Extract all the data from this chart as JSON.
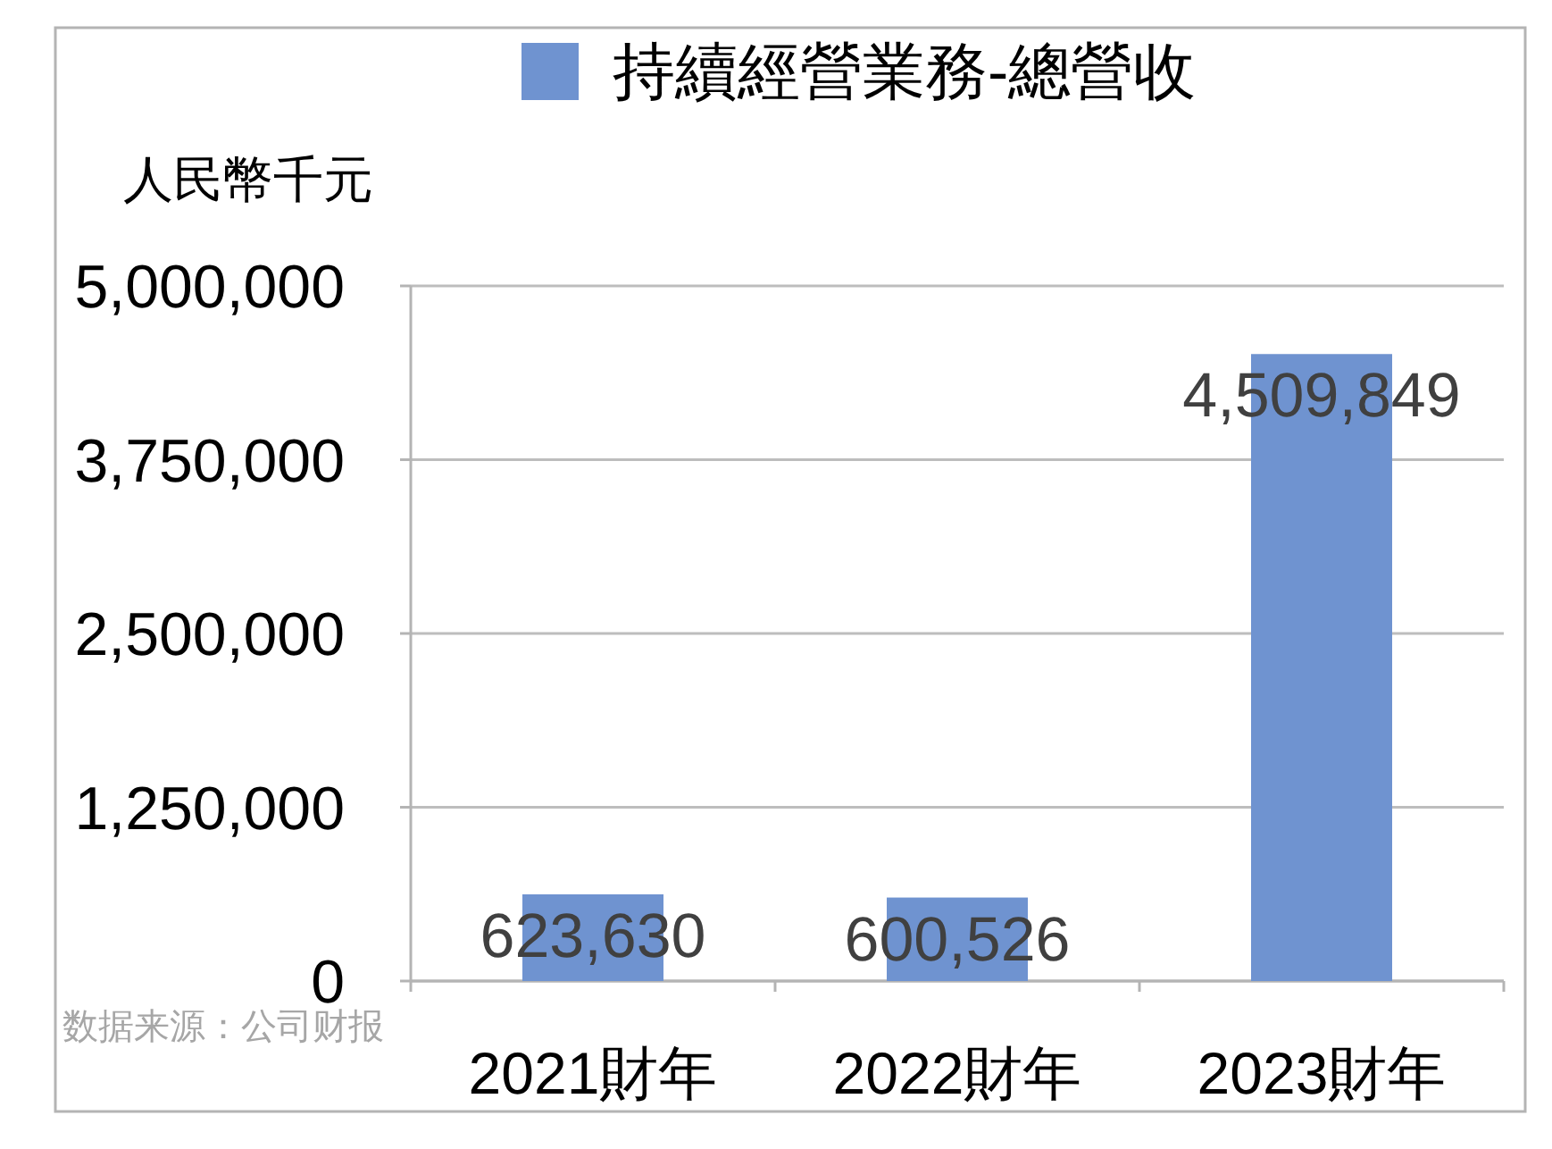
{
  "chart_data": {
    "type": "bar",
    "categories": [
      "2021財年",
      "2022財年",
      "2023財年"
    ],
    "series": [
      {
        "name": "持續經營業務-總營收",
        "color": "#6f93d0",
        "values": [
          623630,
          600526,
          4509849
        ],
        "value_labels": [
          "623,630",
          "600,526",
          "4,509,849"
        ]
      }
    ],
    "ylabel": "人民幣千元",
    "ylim": [
      0,
      5000000
    ],
    "yticks": [
      0,
      {
        "value": 1250000,
        "label": "1,250,000"
      },
      {
        "value": 2500000,
        "label": "2,500,000"
      },
      {
        "value": 3750000,
        "label": "3,750,000"
      },
      {
        "value": 5000000,
        "label": "5,000,000"
      }
    ],
    "grid": "y",
    "legend": "top",
    "annotations": [
      "数据来源：公司财报"
    ]
  }
}
